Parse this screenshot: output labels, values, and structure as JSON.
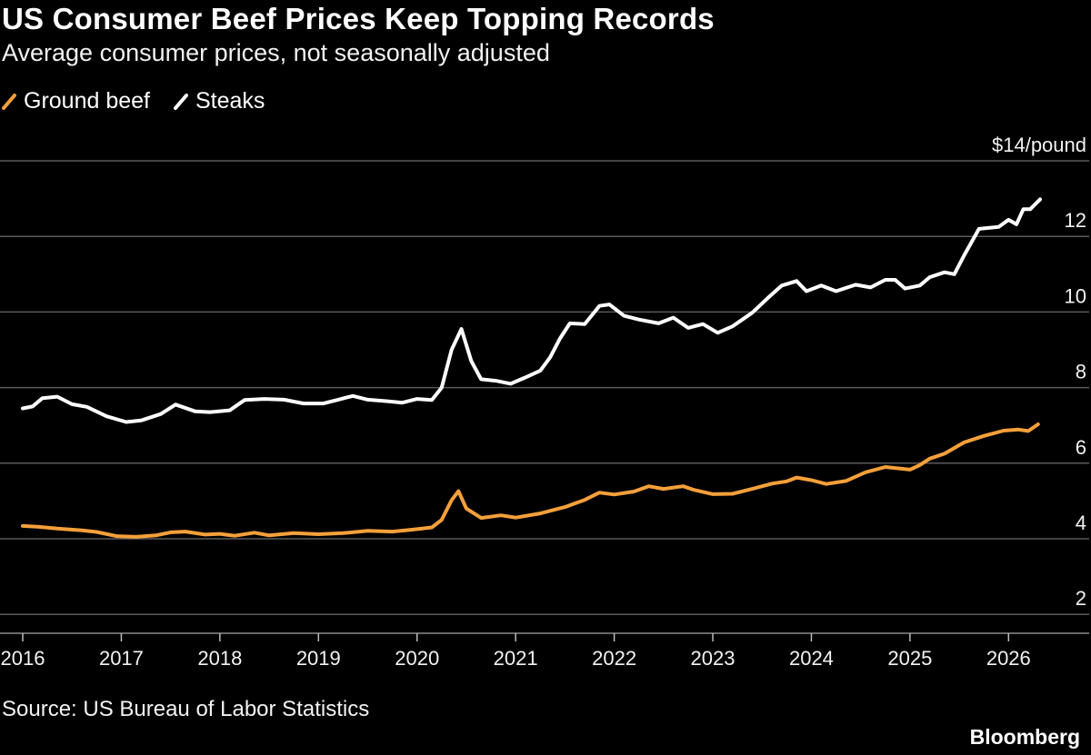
{
  "header": {
    "title": "US Consumer Beef Prices Keep Topping Records",
    "subtitle": "Average consumer prices, not seasonally adjusted"
  },
  "legend": [
    {
      "label": "Ground beef",
      "color": "#f5a03a"
    },
    {
      "label": "Steaks",
      "color": "#ffffff"
    }
  ],
  "footer": {
    "source": "Source: US Bureau of Labor Statistics",
    "brand": "Bloomberg"
  },
  "chart_data": {
    "type": "line",
    "title": "US Consumer Beef Prices Keep Topping Records",
    "subtitle": "Average consumer prices, not seasonally adjusted",
    "ylabel": "",
    "ylim": [
      1.5,
      14
    ],
    "yticks": [
      2,
      4,
      6,
      8,
      10,
      12,
      14
    ],
    "ytick_labels": [
      "2",
      "4",
      "6",
      "8",
      "10",
      "12",
      "$14/pound"
    ],
    "xlim": [
      2016.0,
      2026.4
    ],
    "xticks": [
      2016,
      2017,
      2018,
      2019,
      2020,
      2021,
      2022,
      2023,
      2024,
      2025,
      2026
    ],
    "xtick_labels": [
      "2016",
      "2017",
      "2018",
      "2019",
      "2020",
      "2021",
      "2022",
      "2023",
      "2024",
      "2025",
      "2026"
    ],
    "grid": true,
    "legend_position": "top-left",
    "series": [
      {
        "name": "Ground beef",
        "color": "#f5a03a",
        "points": [
          [
            2016.0,
            4.34
          ],
          [
            2016.15,
            4.32
          ],
          [
            2016.35,
            4.27
          ],
          [
            2016.6,
            4.22
          ],
          [
            2016.75,
            4.18
          ],
          [
            2016.95,
            4.07
          ],
          [
            2017.15,
            4.05
          ],
          [
            2017.35,
            4.09
          ],
          [
            2017.5,
            4.17
          ],
          [
            2017.65,
            4.19
          ],
          [
            2017.85,
            4.11
          ],
          [
            2018.0,
            4.13
          ],
          [
            2018.15,
            4.08
          ],
          [
            2018.35,
            4.16
          ],
          [
            2018.5,
            4.09
          ],
          [
            2018.75,
            4.15
          ],
          [
            2019.0,
            4.12
          ],
          [
            2019.25,
            4.15
          ],
          [
            2019.5,
            4.21
          ],
          [
            2019.75,
            4.19
          ],
          [
            2019.95,
            4.24
          ],
          [
            2020.15,
            4.3
          ],
          [
            2020.25,
            4.5
          ],
          [
            2020.35,
            5.02
          ],
          [
            2020.42,
            5.26
          ],
          [
            2020.5,
            4.8
          ],
          [
            2020.65,
            4.55
          ],
          [
            2020.85,
            4.62
          ],
          [
            2021.0,
            4.56
          ],
          [
            2021.25,
            4.67
          ],
          [
            2021.5,
            4.84
          ],
          [
            2021.7,
            5.03
          ],
          [
            2021.85,
            5.22
          ],
          [
            2022.0,
            5.17
          ],
          [
            2022.2,
            5.25
          ],
          [
            2022.35,
            5.39
          ],
          [
            2022.5,
            5.32
          ],
          [
            2022.7,
            5.39
          ],
          [
            2022.8,
            5.3
          ],
          [
            2023.0,
            5.18
          ],
          [
            2023.2,
            5.19
          ],
          [
            2023.4,
            5.32
          ],
          [
            2023.6,
            5.46
          ],
          [
            2023.75,
            5.52
          ],
          [
            2023.85,
            5.62
          ],
          [
            2024.0,
            5.55
          ],
          [
            2024.15,
            5.45
          ],
          [
            2024.35,
            5.53
          ],
          [
            2024.55,
            5.76
          ],
          [
            2024.75,
            5.9
          ],
          [
            2025.0,
            5.83
          ],
          [
            2025.1,
            5.95
          ],
          [
            2025.2,
            6.12
          ],
          [
            2025.35,
            6.25
          ],
          [
            2025.55,
            6.55
          ],
          [
            2025.75,
            6.72
          ],
          [
            2025.95,
            6.86
          ],
          [
            2026.1,
            6.89
          ],
          [
            2026.2,
            6.85
          ],
          [
            2026.3,
            7.03
          ]
        ]
      },
      {
        "name": "Steaks",
        "color": "#ffffff",
        "points": [
          [
            2016.0,
            7.45
          ],
          [
            2016.1,
            7.5
          ],
          [
            2016.2,
            7.72
          ],
          [
            2016.35,
            7.76
          ],
          [
            2016.5,
            7.56
          ],
          [
            2016.65,
            7.49
          ],
          [
            2016.85,
            7.24
          ],
          [
            2017.05,
            7.09
          ],
          [
            2017.2,
            7.13
          ],
          [
            2017.4,
            7.3
          ],
          [
            2017.55,
            7.55
          ],
          [
            2017.75,
            7.37
          ],
          [
            2017.9,
            7.35
          ],
          [
            2018.1,
            7.4
          ],
          [
            2018.25,
            7.67
          ],
          [
            2018.45,
            7.7
          ],
          [
            2018.65,
            7.68
          ],
          [
            2018.85,
            7.58
          ],
          [
            2019.05,
            7.58
          ],
          [
            2019.2,
            7.68
          ],
          [
            2019.35,
            7.78
          ],
          [
            2019.5,
            7.68
          ],
          [
            2019.7,
            7.64
          ],
          [
            2019.85,
            7.6
          ],
          [
            2020.0,
            7.7
          ],
          [
            2020.15,
            7.67
          ],
          [
            2020.25,
            8.0
          ],
          [
            2020.35,
            9.0
          ],
          [
            2020.45,
            9.55
          ],
          [
            2020.55,
            8.7
          ],
          [
            2020.65,
            8.22
          ],
          [
            2020.8,
            8.18
          ],
          [
            2020.95,
            8.1
          ],
          [
            2021.1,
            8.27
          ],
          [
            2021.25,
            8.45
          ],
          [
            2021.35,
            8.8
          ],
          [
            2021.45,
            9.3
          ],
          [
            2021.55,
            9.7
          ],
          [
            2021.7,
            9.68
          ],
          [
            2021.85,
            10.16
          ],
          [
            2021.95,
            10.2
          ],
          [
            2022.1,
            9.9
          ],
          [
            2022.25,
            9.8
          ],
          [
            2022.45,
            9.7
          ],
          [
            2022.6,
            9.85
          ],
          [
            2022.75,
            9.58
          ],
          [
            2022.9,
            9.68
          ],
          [
            2023.05,
            9.45
          ],
          [
            2023.2,
            9.62
          ],
          [
            2023.4,
            9.98
          ],
          [
            2023.55,
            10.35
          ],
          [
            2023.7,
            10.7
          ],
          [
            2023.85,
            10.82
          ],
          [
            2023.95,
            10.55
          ],
          [
            2024.1,
            10.7
          ],
          [
            2024.25,
            10.55
          ],
          [
            2024.45,
            10.72
          ],
          [
            2024.6,
            10.65
          ],
          [
            2024.75,
            10.85
          ],
          [
            2024.85,
            10.85
          ],
          [
            2024.95,
            10.62
          ],
          [
            2025.1,
            10.7
          ],
          [
            2025.2,
            10.92
          ],
          [
            2025.35,
            11.05
          ],
          [
            2025.45,
            11.0
          ],
          [
            2025.55,
            11.5
          ],
          [
            2025.7,
            12.2
          ],
          [
            2025.9,
            12.25
          ],
          [
            2026.0,
            12.44
          ],
          [
            2026.08,
            12.32
          ],
          [
            2026.15,
            12.72
          ],
          [
            2026.22,
            12.72
          ],
          [
            2026.32,
            12.98
          ]
        ]
      }
    ]
  }
}
